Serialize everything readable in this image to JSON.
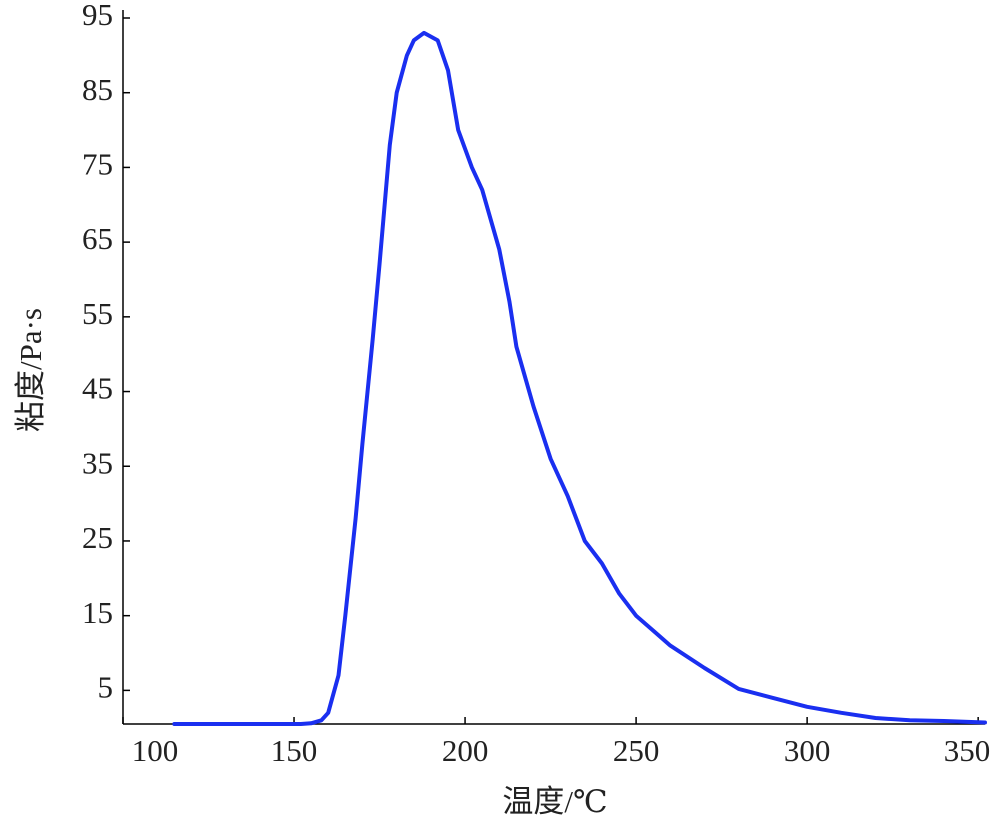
{
  "chart_data": {
    "type": "line",
    "xlabel": "温度/℃",
    "ylabel": "粘度/Pa·s",
    "x": [
      115,
      130,
      145,
      152,
      155,
      158,
      160,
      163,
      165,
      168,
      170,
      173,
      175,
      178,
      180,
      183,
      185,
      188,
      192,
      195,
      198,
      202,
      205,
      210,
      213,
      215,
      220,
      225,
      230,
      235,
      240,
      245,
      250,
      255,
      260,
      270,
      280,
      290,
      300,
      310,
      320,
      330,
      340,
      352
    ],
    "series": [
      {
        "name": "粘度",
        "color": "#1a2ff0",
        "values": [
          0.5,
          0.5,
          0.5,
          0.5,
          0.6,
          1,
          2,
          7,
          15,
          28,
          38,
          52,
          62,
          78,
          85,
          90,
          92,
          93,
          92,
          88,
          80,
          75,
          72,
          64,
          57,
          51,
          43,
          36,
          31,
          25,
          22,
          18,
          15,
          13,
          11,
          8,
          5.2,
          4,
          2.8,
          2,
          1.3,
          1,
          0.9,
          0.7
        ]
      }
    ],
    "xlim": [
      100,
      352
    ],
    "ylim": [
      0.5,
      95
    ],
    "xticks": [
      100,
      150,
      200,
      250,
      300,
      350
    ],
    "yticks": [
      5,
      15,
      25,
      35,
      45,
      55,
      65,
      75,
      85,
      95
    ],
    "grid": false
  }
}
